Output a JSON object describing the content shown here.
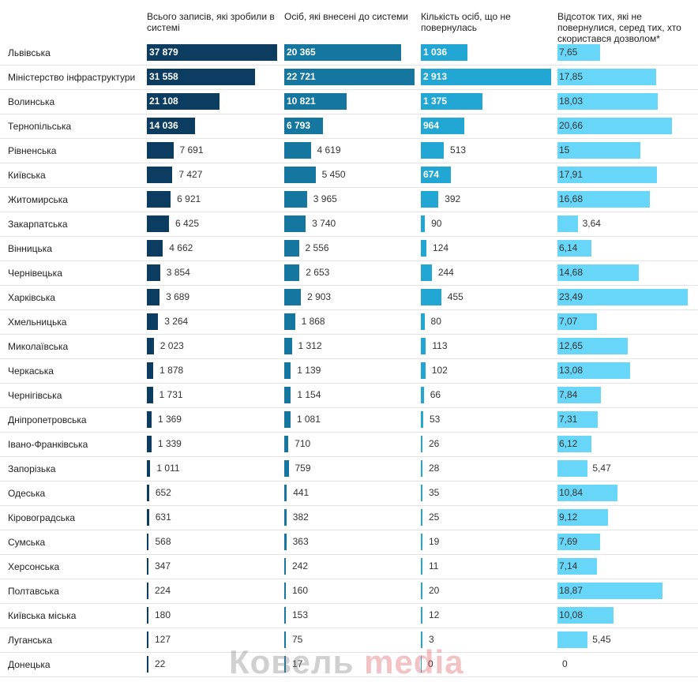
{
  "chart_data": {
    "type": "table",
    "columns": [
      {
        "key": "total",
        "label": "Всього записів, які зробили в системі",
        "color": "#0c3c5f"
      },
      {
        "key": "entered",
        "label": "Осіб, які внесені до системи",
        "color": "#1576a0"
      },
      {
        "key": "not_returned",
        "label": "Кількість осіб, що не повернулась",
        "color": "#22a6d3"
      },
      {
        "key": "percent",
        "label": "Відсоток тих, які не повернулися, серед тих, хто скористався дозволом*",
        "color": "#67d6f8"
      }
    ],
    "rows": [
      {
        "region": "Львівська",
        "total": "37 879",
        "entered": "20 365",
        "not_returned": "1 036",
        "percent": "7,65"
      },
      {
        "region": "Міністерство інфраструктури",
        "total": "31 558",
        "entered": "22 721",
        "not_returned": "2 913",
        "percent": "17,85"
      },
      {
        "region": "Волинська",
        "total": "21 108",
        "entered": "10 821",
        "not_returned": "1 375",
        "percent": "18,03"
      },
      {
        "region": "Тернопільська",
        "total": "14 036",
        "entered": "6 793",
        "not_returned": "964",
        "percent": "20,66"
      },
      {
        "region": "Рівненська",
        "total": "7 691",
        "entered": "4 619",
        "not_returned": "513",
        "percent": "15"
      },
      {
        "region": "Київська",
        "total": "7 427",
        "entered": "5 450",
        "not_returned": "674",
        "percent": "17,91"
      },
      {
        "region": "Житомирська",
        "total": "6 921",
        "entered": "3 965",
        "not_returned": "392",
        "percent": "16,68"
      },
      {
        "region": "Закарпатська",
        "total": "6 425",
        "entered": "3 740",
        "not_returned": "90",
        "percent": "3,64"
      },
      {
        "region": "Вінницька",
        "total": "4 662",
        "entered": "2 556",
        "not_returned": "124",
        "percent": "6,14"
      },
      {
        "region": "Чернівецька",
        "total": "3 854",
        "entered": "2 653",
        "not_returned": "244",
        "percent": "14,68"
      },
      {
        "region": "Харківська",
        "total": "3 689",
        "entered": "2 903",
        "not_returned": "455",
        "percent": "23,49"
      },
      {
        "region": "Хмельницька",
        "total": "3 264",
        "entered": "1 868",
        "not_returned": "80",
        "percent": "7,07"
      },
      {
        "region": "Миколаївська",
        "total": "2 023",
        "entered": "1 312",
        "not_returned": "113",
        "percent": "12,65"
      },
      {
        "region": "Черкаська",
        "total": "1 878",
        "entered": "1 139",
        "not_returned": "102",
        "percent": "13,08"
      },
      {
        "region": "Чернігівська",
        "total": "1 731",
        "entered": "1 154",
        "not_returned": "66",
        "percent": "7,84"
      },
      {
        "region": "Дніпропетровська",
        "total": "1 369",
        "entered": "1 081",
        "not_returned": "53",
        "percent": "7,31"
      },
      {
        "region": "Івано-Франківська",
        "total": "1 339",
        "entered": "710",
        "not_returned": "26",
        "percent": "6,12"
      },
      {
        "region": "Запорізька",
        "total": "1 011",
        "entered": "759",
        "not_returned": "28",
        "percent": "5,47"
      },
      {
        "region": "Одеська",
        "total": "652",
        "entered": "441",
        "not_returned": "35",
        "percent": "10,84"
      },
      {
        "region": "Кіровоградська",
        "total": "631",
        "entered": "382",
        "not_returned": "25",
        "percent": "9,12"
      },
      {
        "region": "Сумська",
        "total": "568",
        "entered": "363",
        "not_returned": "19",
        "percent": "7,69"
      },
      {
        "region": "Херсонська",
        "total": "347",
        "entered": "242",
        "not_returned": "11",
        "percent": "7,14"
      },
      {
        "region": "Полтавська",
        "total": "224",
        "entered": "160",
        "not_returned": "20",
        "percent": "18,87"
      },
      {
        "region": "Київська міська",
        "total": "180",
        "entered": "153",
        "not_returned": "12",
        "percent": "10,08"
      },
      {
        "region": "Луганська",
        "total": "127",
        "entered": "75",
        "not_returned": "3",
        "percent": "5,45"
      },
      {
        "region": "Донецька",
        "total": "22",
        "entered": "17",
        "not_returned": "0",
        "percent": "0"
      }
    ]
  },
  "watermark": {
    "part1": "Ковель ",
    "part2": "media"
  }
}
